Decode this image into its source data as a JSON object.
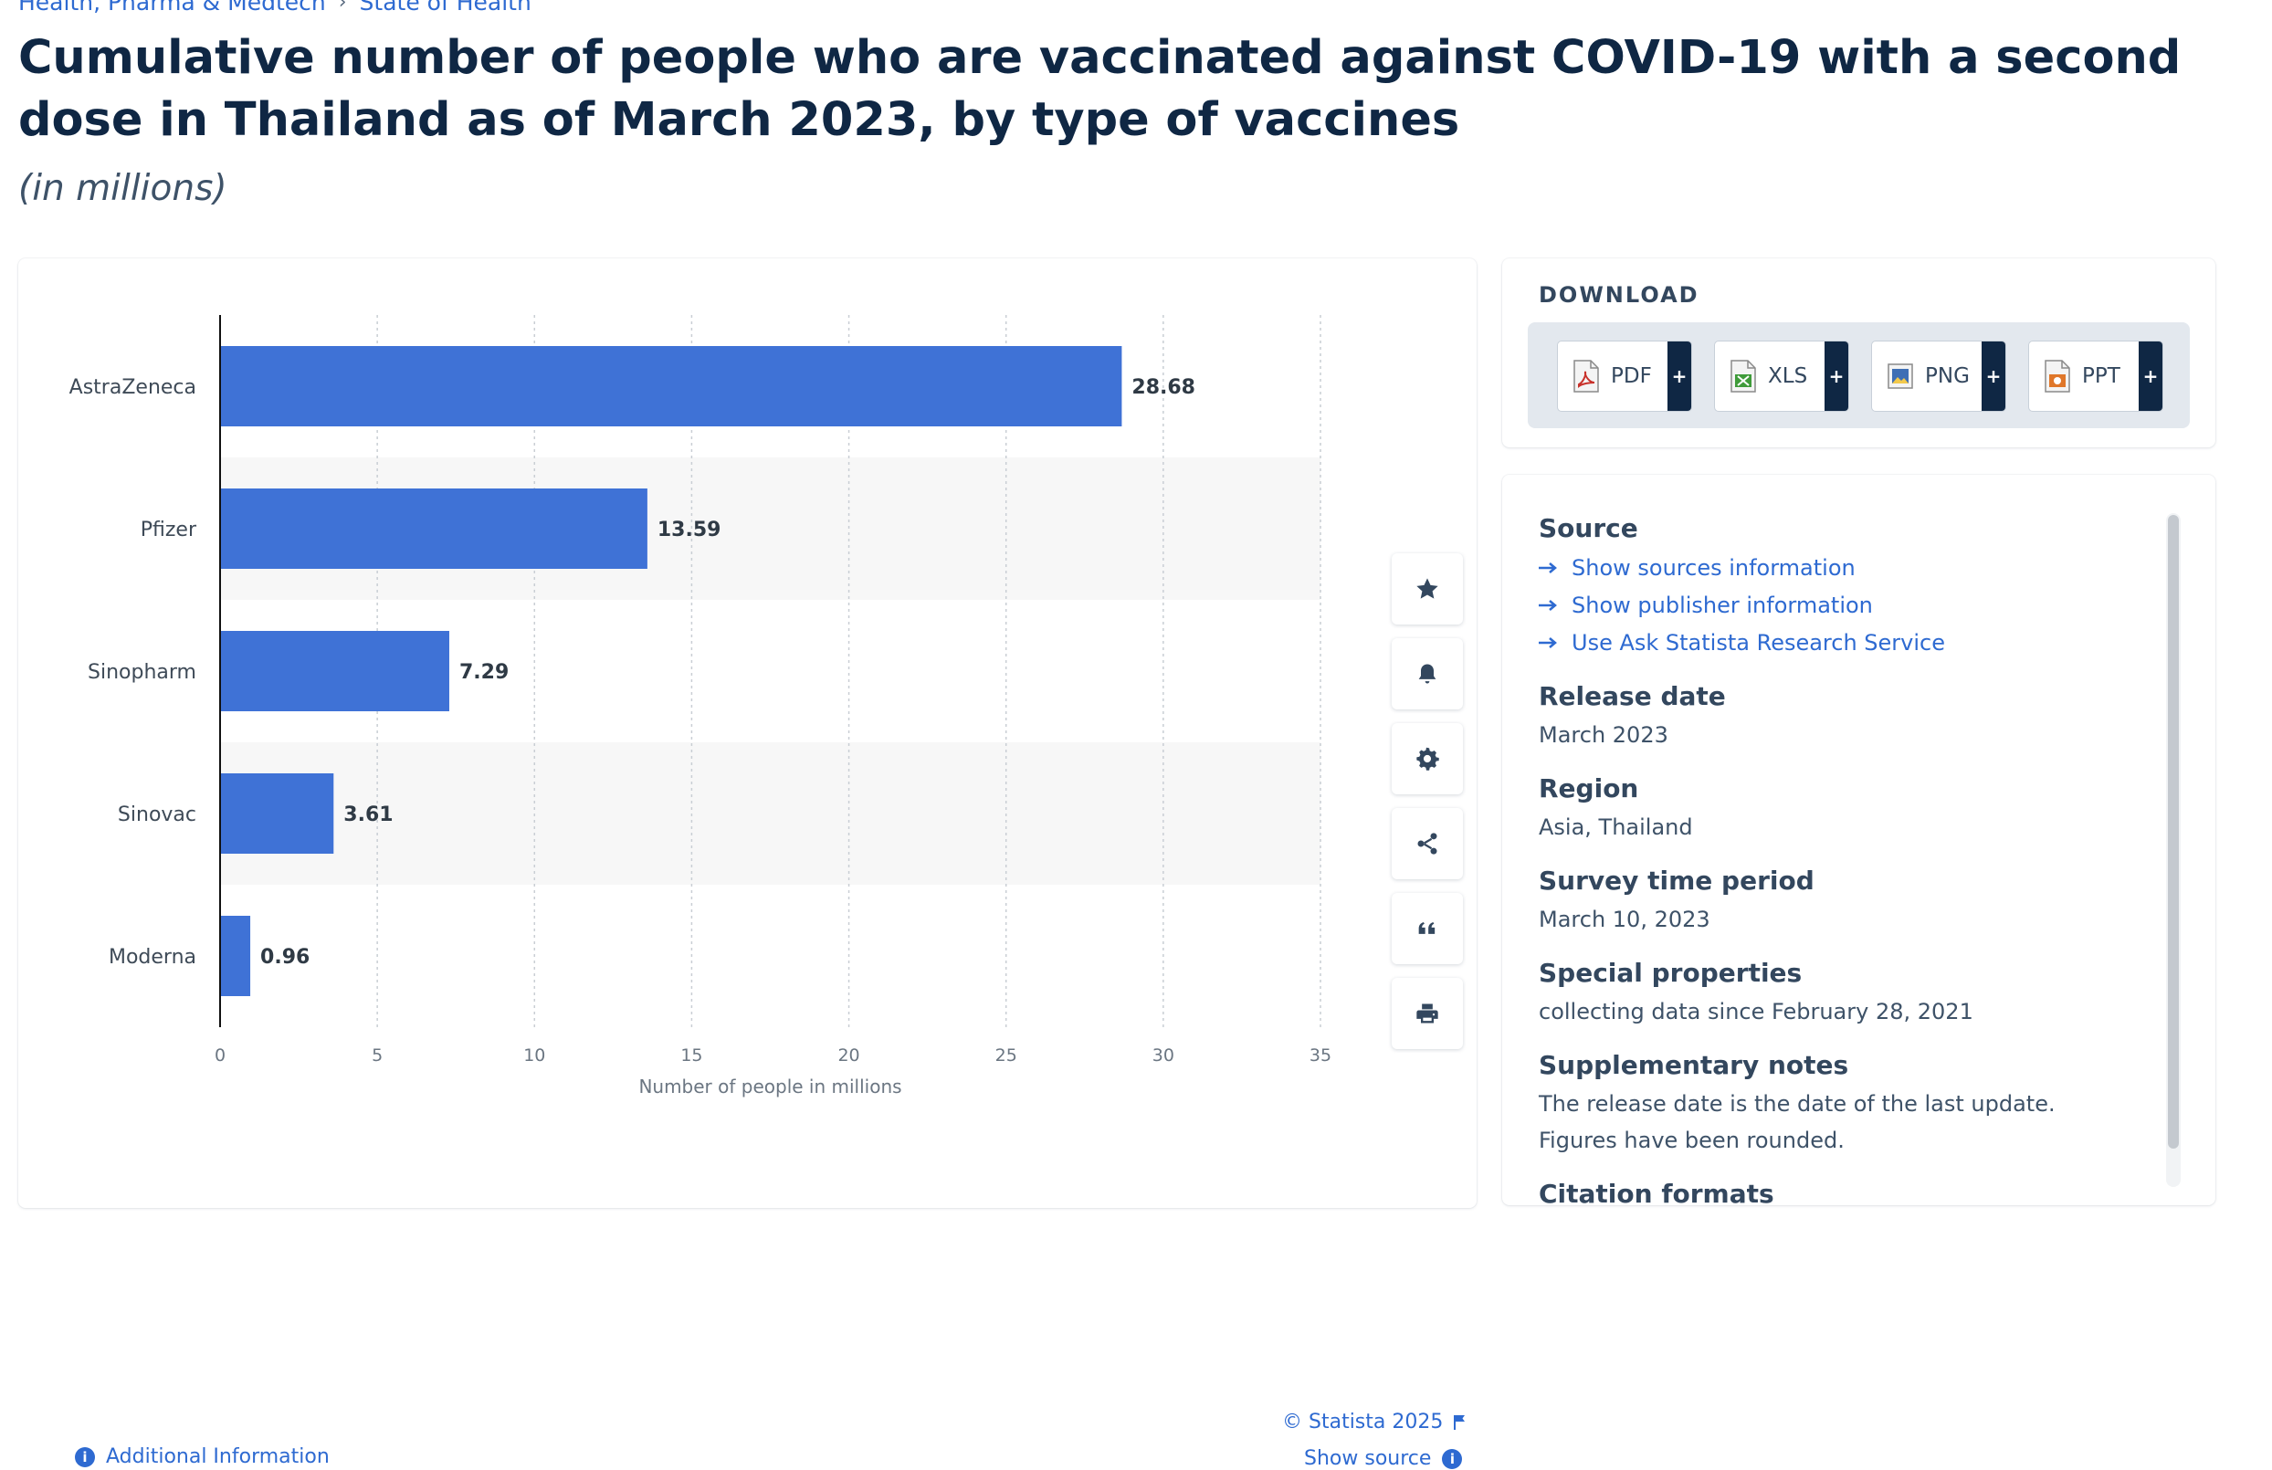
{
  "breadcrumb": {
    "items": [
      "Health, Pharma & Medtech",
      "State of Health"
    ],
    "separator": "›"
  },
  "title": "Cumulative number of people who are vaccinated against COVID-19 with a second dose in Thailand as of March 2023, by type of vaccines",
  "subtitle": "(in millions)",
  "colors": {
    "bar": "#3f72d6",
    "link": "#2e6ad1",
    "heading": "#0f2744",
    "stripe": "#f7f7f7"
  },
  "chart_data": {
    "type": "bar",
    "orientation": "horizontal",
    "categories": [
      "AstraZeneca",
      "Pfizer",
      "Sinopharm",
      "Sinovac",
      "Moderna"
    ],
    "values": [
      28.68,
      13.59,
      7.29,
      3.61,
      0.96
    ],
    "value_labels": [
      "28.68",
      "13.59",
      "7.29",
      "3.61",
      "0.96"
    ],
    "xlabel": "Number of people in millions",
    "ylabel": "",
    "xlim": [
      0,
      35
    ],
    "xticks": [
      0,
      5,
      10,
      15,
      20,
      25,
      30,
      35
    ],
    "xtick_labels": [
      "0",
      "5",
      "10",
      "15",
      "20",
      "25",
      "30",
      "35"
    ],
    "grid": true,
    "legend": "none"
  },
  "tools": [
    {
      "name": "star-icon",
      "label": "Favorite"
    },
    {
      "name": "bell-icon",
      "label": "Notifications"
    },
    {
      "name": "gear-icon",
      "label": "Settings"
    },
    {
      "name": "share-icon",
      "label": "Share"
    },
    {
      "name": "quote-icon",
      "label": "Cite"
    },
    {
      "name": "print-icon",
      "label": "Print"
    }
  ],
  "footer": {
    "copyright": "© Statista 2025",
    "additional_info": "Additional Information",
    "show_source": "Show source"
  },
  "download": {
    "title": "DOWNLOAD",
    "buttons": [
      {
        "label": "PDF",
        "icon": "pdf-file-icon",
        "color": "#c8312b"
      },
      {
        "label": "XLS",
        "icon": "xls-file-icon",
        "color": "#3f9b3a"
      },
      {
        "label": "PNG",
        "icon": "png-file-icon",
        "color": "#3f6fb5"
      },
      {
        "label": "PPT",
        "icon": "ppt-file-icon",
        "color": "#e0772a"
      }
    ],
    "plus": "+"
  },
  "info": {
    "source": {
      "heading": "Source",
      "links": [
        "Show sources information",
        "Show publisher information",
        "Use Ask Statista Research Service"
      ]
    },
    "release_date": {
      "heading": "Release date",
      "value": "March 2023"
    },
    "region": {
      "heading": "Region",
      "value": "Asia, Thailand"
    },
    "survey_period": {
      "heading": "Survey time period",
      "value": "March 10, 2023"
    },
    "special_properties": {
      "heading": "Special properties",
      "value": "collecting data since February 28, 2021"
    },
    "supplementary_notes": {
      "heading": "Supplementary notes",
      "lines": [
        "The release date is the date of the last update.",
        "Figures have been rounded."
      ]
    },
    "citation": {
      "heading": "Citation formats"
    }
  }
}
